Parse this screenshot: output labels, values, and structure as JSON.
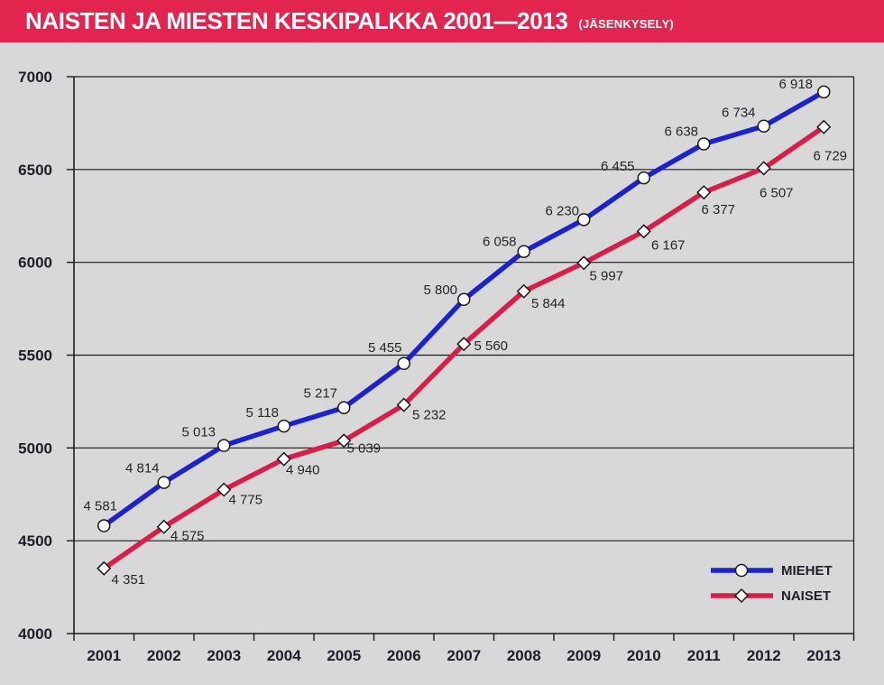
{
  "header": {
    "title": "NAISTEN JA MIESTEN KESKIPALKKA 2001—2013",
    "subtitle": "(JÄSENKYSELY)",
    "bar_color": "#e2254e",
    "text_color": "#ffffff"
  },
  "chart_data": {
    "type": "line",
    "title": "NAISTEN JA MIESTEN KESKIPALKKA 2001—2013 (JÄSENKYSELY)",
    "xlabel": "",
    "ylabel": "",
    "categories": [
      "2001",
      "2002",
      "2003",
      "2004",
      "2005",
      "2006",
      "2007",
      "2008",
      "2009",
      "2010",
      "2011",
      "2012",
      "2013"
    ],
    "series": [
      {
        "name": "MIEHET",
        "color": "#1c22cd",
        "marker": "circle",
        "values": [
          4581,
          4814,
          5013,
          5118,
          5217,
          5455,
          5800,
          6058,
          6230,
          6455,
          6638,
          6734,
          6918
        ],
        "labels": [
          "4 581",
          "4 814",
          "5 013",
          "5 118",
          "5 217",
          "5 455",
          "5 800",
          "6 058",
          "6 230",
          "6 455",
          "6 638",
          "6 734",
          "6 918"
        ],
        "label_offsets": [
          [
            -4,
            -22
          ],
          [
            -24,
            -16
          ],
          [
            -28,
            -15
          ],
          [
            -24,
            -15
          ],
          [
            -26,
            -16
          ],
          [
            -21,
            -18
          ],
          [
            -26,
            -11
          ],
          [
            -27,
            -11
          ],
          [
            -24,
            -10
          ],
          [
            -29,
            -13
          ],
          [
            -25,
            -14
          ],
          [
            -28,
            -15
          ],
          [
            -31,
            -9
          ]
        ]
      },
      {
        "name": "NAISET",
        "color": "#d81e48",
        "marker": "diamond",
        "values": [
          4351,
          4575,
          4775,
          4940,
          5039,
          5232,
          5560,
          5844,
          5997,
          6167,
          6377,
          6507,
          6729
        ],
        "labels": [
          "4 351",
          "4 575",
          "4 775",
          "4 940",
          "5 039",
          "5 232",
          "5 560",
          "5 844",
          "5 997",
          "6 167",
          "6 377",
          "6 507",
          "6 729"
        ],
        "label_offsets": [
          [
            27,
            12
          ],
          [
            26,
            10
          ],
          [
            24,
            11
          ],
          [
            21,
            12
          ],
          [
            22,
            8
          ],
          [
            28,
            11
          ],
          [
            30,
            2
          ],
          [
            27,
            13
          ],
          [
            25,
            14
          ],
          [
            27,
            15
          ],
          [
            16,
            19
          ],
          [
            14,
            27
          ],
          [
            7,
            32
          ]
        ]
      }
    ],
    "ylim": [
      4000,
      7000
    ],
    "yticks": [
      4000,
      4500,
      5000,
      5500,
      6000,
      6500,
      7000
    ],
    "grid": true,
    "grid_color": "#1b1b1b",
    "background": "#d8d8d8",
    "marker_fill": "#ffffff",
    "marker_stroke": "#1a1a1a",
    "legend_position": "inside-bottom-right",
    "legend_items": [
      "MIEHET",
      "NAISET"
    ]
  }
}
